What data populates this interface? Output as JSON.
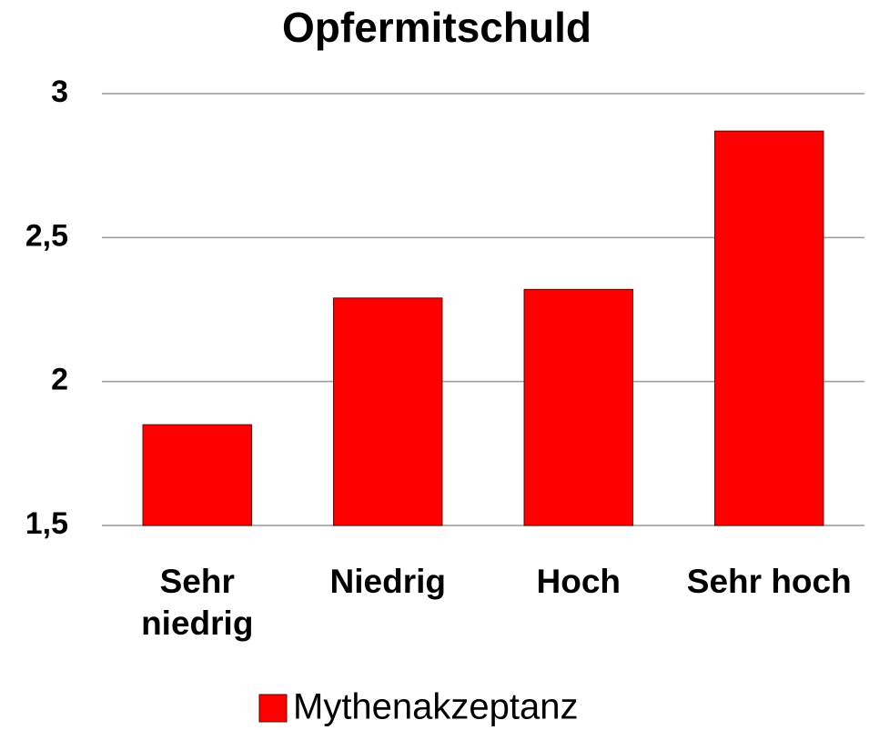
{
  "chart_data": {
    "type": "bar",
    "title": "Opfermitschuld",
    "categories": [
      "Sehr niedrig",
      "Niedrig",
      "Hoch",
      "Sehr hoch"
    ],
    "series": [
      {
        "name": "Mythenakzeptanz",
        "color": "#ff0000",
        "values": [
          1.85,
          2.29,
          2.32,
          2.87
        ]
      }
    ],
    "ylim": [
      1.5,
      3
    ],
    "yticks": [
      {
        "value": 1.5,
        "label": "1,5"
      },
      2,
      {
        "value": 2.5,
        "label": "2,5"
      },
      3
    ],
    "grid": true
  }
}
